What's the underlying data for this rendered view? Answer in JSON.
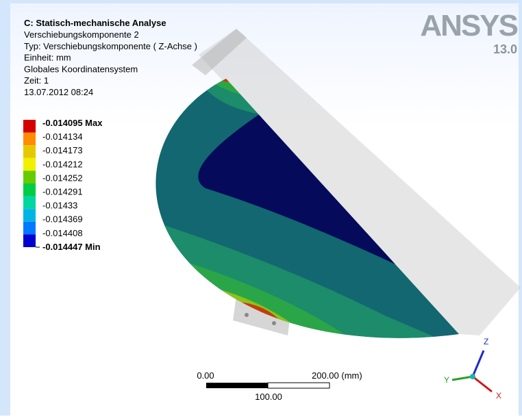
{
  "header": {
    "title": "C: Statisch-mechanische Analyse",
    "lines": [
      "Verschiebungskomponente 2",
      "Typ: Verschiebungskomponente ( Z-Achse )",
      "Einheit: mm",
      "Globales Koordinatensystem",
      "Zeit: 1",
      "13.07.2012 08:24"
    ]
  },
  "logo": {
    "name": "ANSYS",
    "version": "13.0"
  },
  "legend": [
    {
      "label": "-0.014095 Max",
      "color": "#d40000"
    },
    {
      "label": "-0.014134",
      "color": "#ff8c00"
    },
    {
      "label": "-0.014173",
      "color": "#e6c800"
    },
    {
      "label": "-0.014212",
      "color": "#f0f000"
    },
    {
      "label": "-0.014252",
      "color": "#66cc00"
    },
    {
      "label": "-0.014291",
      "color": "#00cc44"
    },
    {
      "label": "-0.01433",
      "color": "#00d6a0"
    },
    {
      "label": "-0.014369",
      "color": "#00b4e6"
    },
    {
      "label": "-0.014408",
      "color": "#0078ff"
    },
    {
      "label": "-0.014447 Min",
      "color": "#0000d0"
    }
  ],
  "scale_bar": {
    "left": "0.00",
    "right": "200.00 (mm)",
    "middle": "100.00"
  },
  "triad": {
    "z": "Z",
    "y": "Y",
    "x": "X"
  }
}
